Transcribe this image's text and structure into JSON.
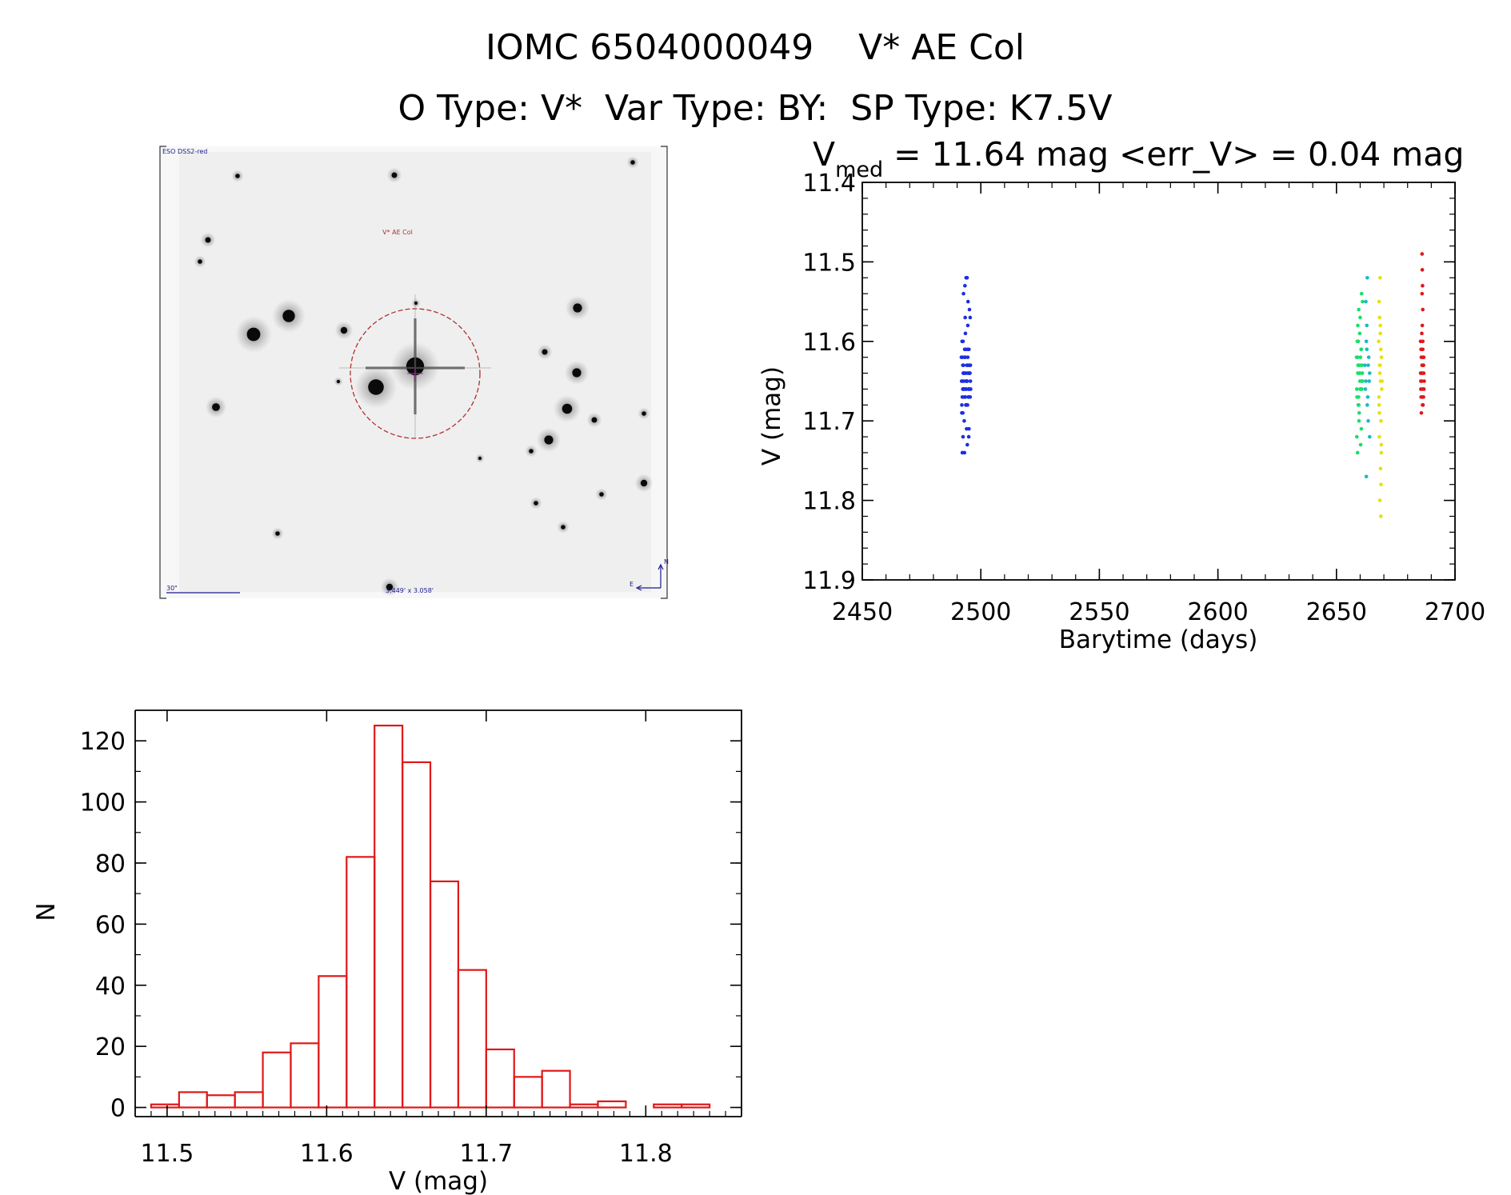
{
  "title": "IOMC 6504000049    V* AE Col",
  "subtitle": "O Type: V*  Var Type: BY:  SP Type: K7.5V",
  "finder_chart": {
    "survey_label": "ESO DSS2-red",
    "target_label": "V* AE Col",
    "scale_label": "30\"",
    "fov_label": "3.449' x 3.058'",
    "north_label": "N",
    "east_label": "E",
    "colors": {
      "circle": "#b03030",
      "text_blue": "#1a1a90",
      "target_text": "#b03030"
    }
  },
  "chart_data": [
    {
      "type": "scatter",
      "title_main": "V",
      "title_sub": "med",
      "title_rest": " = 11.64 mag <err_V> = 0.04 mag",
      "xlabel": "Barytime (days)",
      "ylabel": "V (mag)",
      "xlim": [
        2450,
        2700
      ],
      "ylim": [
        11.4,
        11.9
      ],
      "y_inverted": true,
      "xticks": [
        "2450",
        "2500",
        "2550",
        "2600",
        "2650",
        "2700"
      ],
      "yticks": [
        "11.4",
        "11.5",
        "11.6",
        "11.7",
        "11.8",
        "11.9"
      ],
      "series": [
        {
          "color": "#1e2ee0",
          "x": [
            2491.8,
            2492.1,
            2492.4,
            2492.7,
            2493.0,
            2493.3,
            2493.6,
            2493.9,
            2494.2,
            2494.5,
            2494.8,
            2495.1,
            2495.4,
            2495.7,
            2492.0,
            2492.3,
            2492.6,
            2492.9,
            2493.2,
            2493.5,
            2493.8,
            2494.1,
            2494.4,
            2494.7,
            2495.0,
            2495.3,
            2495.6,
            2491.9,
            2492.2,
            2492.5,
            2492.8,
            2493.1,
            2493.4,
            2493.7,
            2494.0,
            2494.3,
            2494.6,
            2494.9,
            2495.2,
            2495.5,
            2492.0,
            2492.4,
            2492.8,
            2493.2,
            2493.6,
            2494.0,
            2494.4,
            2494.8,
            2495.2,
            2495.6,
            2492.1,
            2492.5,
            2492.9,
            2493.3,
            2493.7,
            2494.1,
            2494.5,
            2494.9,
            2495.3,
            2493.0,
            2493.5,
            2494.0,
            2494.5,
            2492.5,
            2493.4,
            2494.3,
            2495.2,
            2492.2,
            2494.6,
            2493.1,
            2495.5,
            2493.8,
            2492.7,
            2494.9,
            2493.3,
            2495.0,
            2492.4,
            2494.2
          ],
          "y": [
            11.62,
            11.65,
            11.66,
            11.63,
            11.67,
            11.64,
            11.61,
            11.66,
            11.65,
            11.62,
            11.67,
            11.63,
            11.64,
            11.66,
            11.68,
            11.62,
            11.64,
            11.66,
            11.61,
            11.67,
            11.65,
            11.63,
            11.68,
            11.64,
            11.61,
            11.66,
            11.63,
            11.65,
            11.67,
            11.6,
            11.64,
            11.66,
            11.62,
            11.68,
            11.65,
            11.63,
            11.61,
            11.66,
            11.64,
            11.67,
            11.69,
            11.63,
            11.65,
            11.62,
            11.66,
            11.64,
            11.61,
            11.67,
            11.63,
            11.65,
            11.6,
            11.66,
            11.64,
            11.62,
            11.68,
            11.65,
            11.63,
            11.66,
            11.64,
            11.7,
            11.59,
            11.71,
            11.58,
            11.72,
            11.57,
            11.73,
            11.56,
            11.74,
            11.55,
            11.74,
            11.57,
            11.52,
            11.54,
            11.72,
            11.53,
            11.71,
            11.69,
            11.52
          ]
        },
        {
          "color": "#18e06a",
          "x": [
            2658.5,
            2659.0,
            2659.5,
            2660.0,
            2660.5,
            2661.0,
            2658.7,
            2659.2,
            2659.7,
            2660.2,
            2660.7,
            2658.9,
            2659.4,
            2659.9,
            2660.4,
            2660.9,
            2658.6,
            2659.1,
            2659.6,
            2660.1,
            2660.6,
            2658.8,
            2659.3,
            2659.8,
            2660.3,
            2660.8,
            2659.0,
            2659.5,
            2660.0,
            2660.5,
            2658.6,
            2659.4,
            2660.2,
            2661.0,
            2659.8,
            2658.9,
            2660.6,
            2659.2
          ],
          "y": [
            11.62,
            11.64,
            11.63,
            11.66,
            11.61,
            11.65,
            11.67,
            11.6,
            11.64,
            11.63,
            11.66,
            11.62,
            11.68,
            11.65,
            11.61,
            11.64,
            11.66,
            11.63,
            11.69,
            11.62,
            11.65,
            11.6,
            11.67,
            11.64,
            11.66,
            11.63,
            11.58,
            11.7,
            11.57,
            11.71,
            11.72,
            11.56,
            11.73,
            11.55,
            11.59,
            11.74,
            11.54,
            11.68
          ]
        },
        {
          "color": "#1eb8c8",
          "x": [
            2662.0,
            2662.4,
            2662.8,
            2663.2,
            2663.6,
            2664.0,
            2662.2,
            2662.6,
            2663.0,
            2663.4,
            2663.8,
            2662.8,
            2663.4,
            2662.4,
            2664.0,
            2663.0,
            2662.6
          ],
          "y": [
            11.63,
            11.65,
            11.61,
            11.67,
            11.62,
            11.64,
            11.66,
            11.6,
            11.68,
            11.63,
            11.65,
            11.58,
            11.7,
            11.55,
            11.72,
            11.52,
            11.77
          ]
        },
        {
          "color": "#e8e010",
          "x": [
            2667.8,
            2668.2,
            2668.6,
            2669.0,
            2667.9,
            2668.3,
            2668.7,
            2669.1,
            2668.0,
            2668.4,
            2668.8,
            2669.2,
            2668.1,
            2668.5,
            2668.9,
            2668.2,
            2668.6,
            2668.0,
            2668.8,
            2668.4,
            2668.3,
            2668.7,
            2668.5,
            2668.1,
            2668.9
          ],
          "y": [
            11.6,
            11.63,
            11.65,
            11.62,
            11.67,
            11.64,
            11.61,
            11.66,
            11.68,
            11.63,
            11.7,
            11.65,
            11.72,
            11.59,
            11.74,
            11.57,
            11.76,
            11.55,
            11.78,
            11.52,
            11.8,
            11.82,
            11.58,
            11.69,
            11.73
          ]
        },
        {
          "color": "#e01818",
          "x": [
            2685.5,
            2685.8,
            2686.1,
            2686.4,
            2686.7,
            2687.0,
            2685.6,
            2685.9,
            2686.2,
            2686.5,
            2686.8,
            2685.7,
            2686.0,
            2686.3,
            2686.6,
            2686.9,
            2685.5,
            2685.8,
            2686.1,
            2686.4,
            2686.7,
            2685.6,
            2685.9,
            2686.2,
            2686.5,
            2686.8,
            2686.0,
            2686.3,
            2686.6,
            2685.7,
            2686.2,
            2686.4,
            2686.1,
            2686.3,
            2686.2,
            2686.1
          ],
          "y": [
            11.6,
            11.62,
            11.64,
            11.61,
            11.63,
            11.65,
            11.66,
            11.62,
            11.67,
            11.63,
            11.64,
            11.61,
            11.65,
            11.68,
            11.62,
            11.66,
            11.64,
            11.69,
            11.63,
            11.6,
            11.67,
            11.65,
            11.61,
            11.64,
            11.68,
            11.62,
            11.59,
            11.66,
            11.63,
            11.67,
            11.58,
            11.56,
            11.54,
            11.53,
            11.51,
            11.49
          ]
        }
      ]
    },
    {
      "type": "bar",
      "subtype": "histogram",
      "xlabel": "V (mag)",
      "ylabel": "N",
      "xlim": [
        11.48,
        11.86
      ],
      "ylim": [
        -3,
        130
      ],
      "xticks": [
        "11.5",
        "11.6",
        "11.7",
        "11.8"
      ],
      "yticks": [
        "0",
        "20",
        "40",
        "60",
        "80",
        "100",
        "120"
      ],
      "bin_width": 0.0175,
      "bin_left_edges": [
        11.49,
        11.5075,
        11.525,
        11.5425,
        11.56,
        11.5775,
        11.595,
        11.6125,
        11.63,
        11.6475,
        11.665,
        11.6825,
        11.7,
        11.7175,
        11.735,
        11.7525,
        11.77,
        11.7875,
        11.805,
        11.8225
      ],
      "values": [
        1,
        5,
        4,
        5,
        18,
        21,
        43,
        82,
        125,
        113,
        74,
        45,
        19,
        10,
        12,
        1,
        2,
        0,
        1,
        1
      ],
      "color": "#e01818"
    }
  ]
}
